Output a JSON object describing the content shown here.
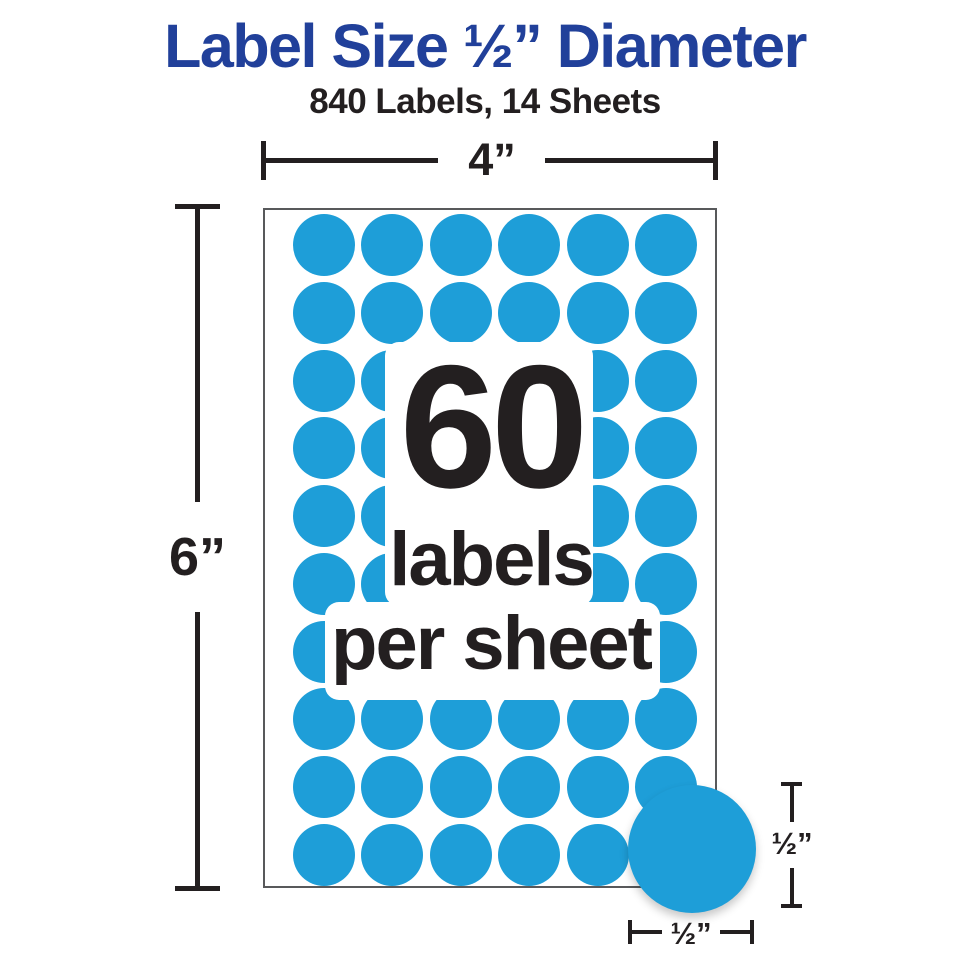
{
  "header": {
    "title": "Label Size ½” Diameter",
    "subtitle": "840 Labels, 14 Sheets"
  },
  "dimensions": {
    "sheet_width_label": "4”",
    "sheet_height_label": "6”",
    "label_height_label": "½”",
    "label_width_label": "½”"
  },
  "sheet_callout": {
    "count": "60",
    "line2": "labels",
    "line3": "per sheet"
  },
  "label_grid": {
    "rows": 10,
    "columns": 6,
    "labels_per_sheet": 60
  },
  "colors": {
    "title_blue": "#21409A",
    "label_blue": "#1E9ED8",
    "text_black": "#231F20",
    "sheet_border": "#58595B"
  }
}
